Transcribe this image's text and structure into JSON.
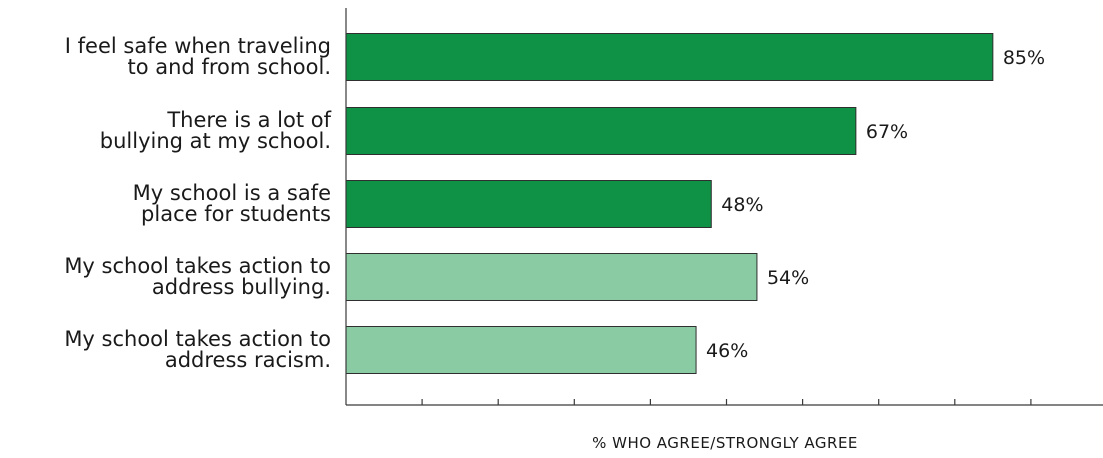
{
  "chart_data": {
    "type": "bar",
    "orientation": "horizontal",
    "categories": [
      "I feel safe when traveling to and from school.",
      "There is a lot of bullying at my school.",
      "My school is a safe place for students",
      "My school takes action to address bullying.",
      "My school takes action to address racism."
    ],
    "category_lines": [
      [
        "I feel safe when traveling",
        "to and from school."
      ],
      [
        "There is a lot of",
        "bullying at my school."
      ],
      [
        "My school is a safe",
        "place for students"
      ],
      [
        "My school takes action to",
        "address bullying."
      ],
      [
        "My school takes action to",
        "address racism."
      ]
    ],
    "values": [
      85,
      67,
      48,
      54,
      46
    ],
    "value_labels": [
      "85%",
      "67%",
      "48%",
      "54%",
      "46%"
    ],
    "bar_colors": [
      "#0f9146",
      "#0f9146",
      "#0f9146",
      "#8acba3",
      "#8acba3"
    ],
    "xlabel": "% WHO AGREE/STRONGLY AGREE",
    "ylabel": "",
    "title": "",
    "xlim": [
      0,
      100
    ],
    "x_tick_step": 10,
    "x_tick_labels_shown": false,
    "grid": false,
    "legend": false
  }
}
